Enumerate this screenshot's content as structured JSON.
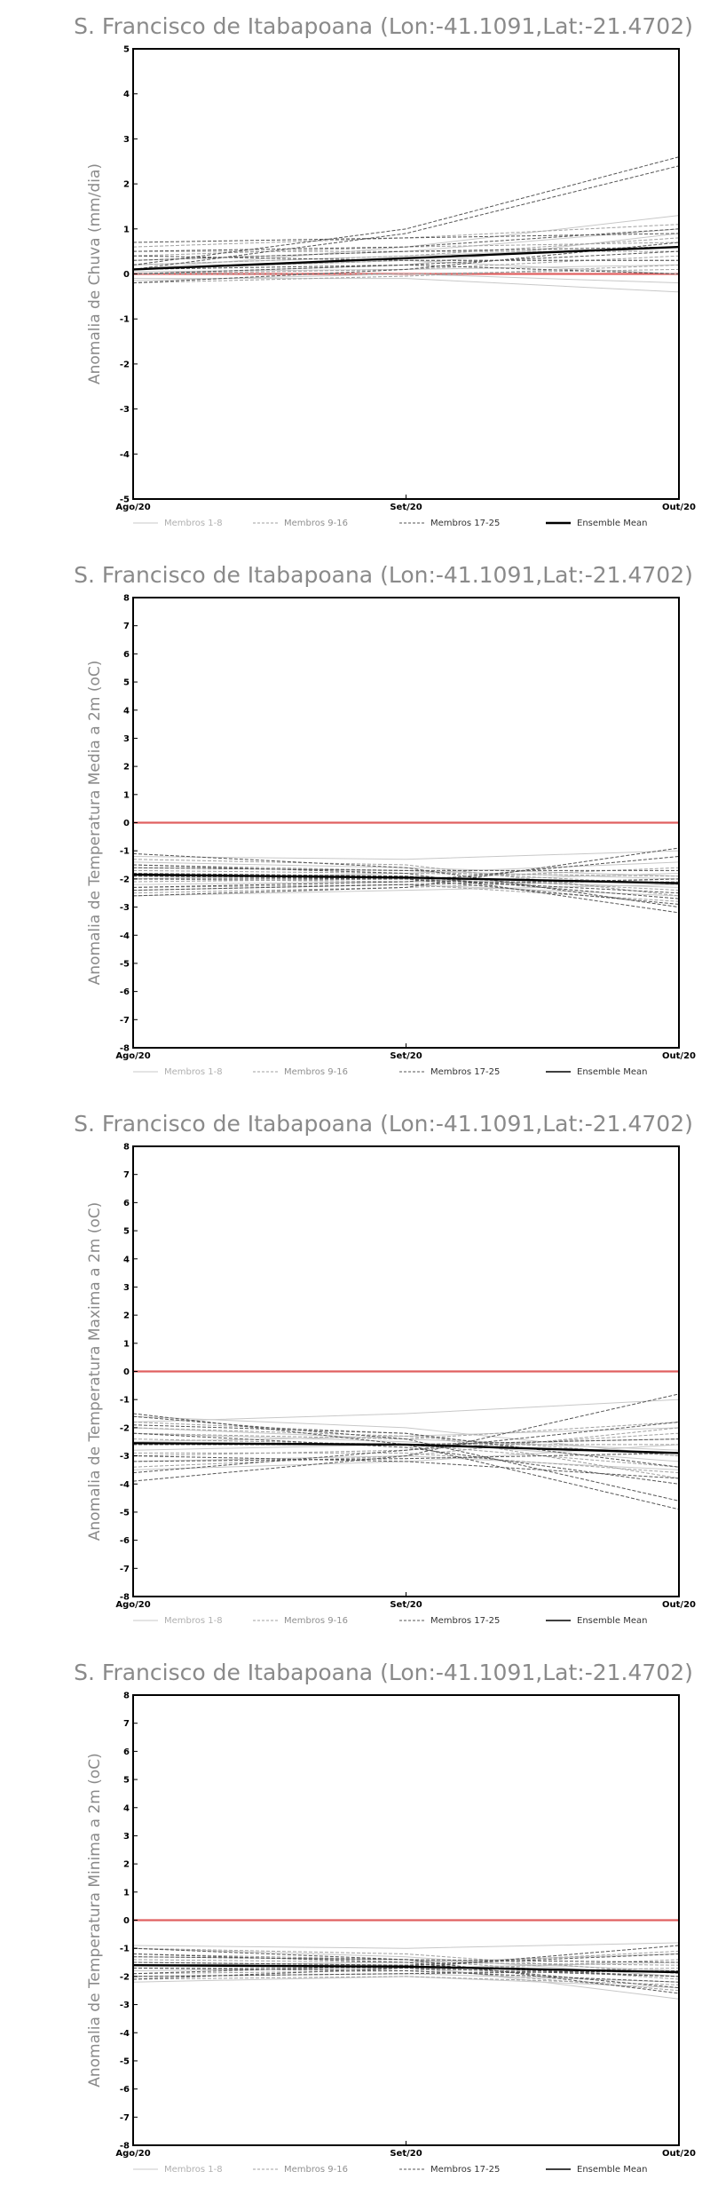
{
  "legend": [
    {
      "label": "Membros 1-8",
      "color": "#c8c8c8",
      "style": "solid"
    },
    {
      "label": "Membros 9-16",
      "color": "#a0a0a0",
      "style": "dashed"
    },
    {
      "label": "Membros 17-25",
      "color": "#555555",
      "style": "dashed"
    },
    {
      "label": "Ensemble Mean",
      "color": "#000000",
      "style": "solid"
    }
  ],
  "chart_data": [
    {
      "type": "line",
      "title": "S. Francisco de Itabapoana (Lon:-41.1091,Lat:-21.4702)",
      "ylabel": "Anomalia de Chuva (mm/dia)",
      "categories": [
        "Ago/20",
        "Set/20",
        "Out/20"
      ],
      "ylim": [
        -5,
        5
      ],
      "yticks": [
        -5,
        -4,
        -3,
        -2,
        -1,
        0,
        1,
        2,
        3,
        4,
        5
      ],
      "reference_line": {
        "value": 0,
        "color": "#e06060"
      },
      "series": [
        {
          "group": 1,
          "values": [
            0.1,
            0.6,
            1.3
          ]
        },
        {
          "group": 1,
          "values": [
            0.0,
            0.2,
            0.9
          ]
        },
        {
          "group": 1,
          "values": [
            -0.1,
            -0.1,
            -0.4
          ]
        },
        {
          "group": 1,
          "values": [
            0.2,
            0.4,
            0.6
          ]
        },
        {
          "group": 1,
          "values": [
            0.05,
            0.1,
            0.2
          ]
        },
        {
          "group": 1,
          "values": [
            0.3,
            0.5,
            1.0
          ]
        },
        {
          "group": 1,
          "values": [
            -0.15,
            0.0,
            -0.2
          ]
        },
        {
          "group": 1,
          "values": [
            0.1,
            0.3,
            0.0
          ]
        },
        {
          "group": 2,
          "values": [
            0.4,
            0.6,
            0.7
          ]
        },
        {
          "group": 2,
          "values": [
            0.6,
            0.8,
            1.1
          ]
        },
        {
          "group": 2,
          "values": [
            0.0,
            0.1,
            0.4
          ]
        },
        {
          "group": 2,
          "values": [
            -0.2,
            -0.05,
            0.2
          ]
        },
        {
          "group": 2,
          "values": [
            0.2,
            0.4,
            0.8
          ]
        },
        {
          "group": 2,
          "values": [
            0.1,
            0.3,
            0.3
          ]
        },
        {
          "group": 2,
          "values": [
            0.5,
            0.5,
            0.5
          ]
        },
        {
          "group": 2,
          "values": [
            0.0,
            0.0,
            0.1
          ]
        },
        {
          "group": 3,
          "values": [
            0.2,
            1.0,
            2.6
          ]
        },
        {
          "group": 3,
          "values": [
            0.1,
            0.9,
            2.4
          ]
        },
        {
          "group": 3,
          "values": [
            0.7,
            0.8,
            0.9
          ]
        },
        {
          "group": 3,
          "values": [
            -0.2,
            0.1,
            0.7
          ]
        },
        {
          "group": 3,
          "values": [
            0.3,
            0.5,
            0.6
          ]
        },
        {
          "group": 3,
          "values": [
            0.0,
            0.2,
            0.5
          ]
        },
        {
          "group": 3,
          "values": [
            0.5,
            0.6,
            1.0
          ]
        },
        {
          "group": 3,
          "values": [
            0.1,
            0.2,
            0.0
          ]
        },
        {
          "group": 3,
          "values": [
            0.4,
            0.3,
            0.3
          ]
        },
        {
          "group": 4,
          "values": [
            0.1,
            0.35,
            0.6
          ]
        }
      ]
    },
    {
      "type": "line",
      "title": "S. Francisco de Itabapoana (Lon:-41.1091,Lat:-21.4702)",
      "ylabel": "Anomalia de Temperatura Media a 2m (oC)",
      "categories": [
        "Ago/20",
        "Set/20",
        "Out/20"
      ],
      "ylim": [
        -8,
        8
      ],
      "yticks": [
        -8,
        -7,
        -6,
        -5,
        -4,
        -3,
        -2,
        -1,
        0,
        1,
        2,
        3,
        4,
        5,
        6,
        7,
        8
      ],
      "reference_line": {
        "value": 0,
        "color": "#e06060"
      },
      "series": [
        {
          "group": 1,
          "values": [
            -1.2,
            -1.3,
            -1.0
          ]
        },
        {
          "group": 1,
          "values": [
            -2.0,
            -1.8,
            -1.4
          ]
        },
        {
          "group": 1,
          "values": [
            -2.4,
            -2.2,
            -2.6
          ]
        },
        {
          "group": 1,
          "values": [
            -1.6,
            -1.7,
            -2.0
          ]
        },
        {
          "group": 1,
          "values": [
            -1.8,
            -2.0,
            -2.3
          ]
        },
        {
          "group": 1,
          "values": [
            -2.2,
            -2.1,
            -1.8
          ]
        },
        {
          "group": 1,
          "values": [
            -1.4,
            -1.6,
            -1.9
          ]
        },
        {
          "group": 1,
          "values": [
            -2.6,
            -2.4,
            -2.2
          ]
        },
        {
          "group": 2,
          "values": [
            -1.5,
            -1.7,
            -2.2
          ]
        },
        {
          "group": 2,
          "values": [
            -2.1,
            -2.0,
            -1.6
          ]
        },
        {
          "group": 2,
          "values": [
            -1.9,
            -1.9,
            -2.4
          ]
        },
        {
          "group": 2,
          "values": [
            -2.3,
            -2.2,
            -2.8
          ]
        },
        {
          "group": 2,
          "values": [
            -1.7,
            -1.8,
            -1.9
          ]
        },
        {
          "group": 2,
          "values": [
            -2.5,
            -2.3,
            -2.0
          ]
        },
        {
          "group": 2,
          "values": [
            -1.3,
            -1.5,
            -2.6
          ]
        },
        {
          "group": 2,
          "values": [
            -2.0,
            -2.1,
            -2.1
          ]
        },
        {
          "group": 3,
          "values": [
            -1.1,
            -1.6,
            -3.0
          ]
        },
        {
          "group": 3,
          "values": [
            -1.5,
            -1.8,
            -3.2
          ]
        },
        {
          "group": 3,
          "values": [
            -2.6,
            -2.3,
            -0.9
          ]
        },
        {
          "group": 3,
          "values": [
            -2.3,
            -2.1,
            -1.2
          ]
        },
        {
          "group": 3,
          "values": [
            -1.8,
            -1.9,
            -2.7
          ]
        },
        {
          "group": 3,
          "values": [
            -2.0,
            -2.0,
            -2.5
          ]
        },
        {
          "group": 3,
          "values": [
            -1.6,
            -1.7,
            -1.7
          ]
        },
        {
          "group": 3,
          "values": [
            -2.4,
            -2.2,
            -2.0
          ]
        },
        {
          "group": 3,
          "values": [
            -1.9,
            -2.0,
            -2.9
          ]
        },
        {
          "group": 4,
          "values": [
            -1.85,
            -1.95,
            -2.15
          ]
        }
      ]
    },
    {
      "type": "line",
      "title": "S. Francisco de Itabapoana (Lon:-41.1091,Lat:-21.4702)",
      "ylabel": "Anomalia de Temperatura Maxima a 2m (oC)",
      "categories": [
        "Ago/20",
        "Set/20",
        "Out/20"
      ],
      "ylim": [
        -8,
        8
      ],
      "yticks": [
        -8,
        -7,
        -6,
        -5,
        -4,
        -3,
        -2,
        -1,
        0,
        1,
        2,
        3,
        4,
        5,
        6,
        7,
        8
      ],
      "reference_line": {
        "value": 0,
        "color": "#e06060"
      },
      "series": [
        {
          "group": 1,
          "values": [
            -1.8,
            -1.5,
            -1.0
          ]
        },
        {
          "group": 1,
          "values": [
            -2.5,
            -2.3,
            -2.0
          ]
        },
        {
          "group": 1,
          "values": [
            -3.2,
            -3.0,
            -3.5
          ]
        },
        {
          "group": 1,
          "values": [
            -2.0,
            -2.4,
            -2.8
          ]
        },
        {
          "group": 1,
          "values": [
            -2.8,
            -2.6,
            -2.4
          ]
        },
        {
          "group": 1,
          "values": [
            -1.6,
            -2.0,
            -3.0
          ]
        },
        {
          "group": 1,
          "values": [
            -3.5,
            -3.2,
            -2.6
          ]
        },
        {
          "group": 1,
          "values": [
            -2.2,
            -2.5,
            -3.2
          ]
        },
        {
          "group": 2,
          "values": [
            -2.4,
            -2.6,
            -3.4
          ]
        },
        {
          "group": 2,
          "values": [
            -3.0,
            -2.8,
            -2.2
          ]
        },
        {
          "group": 2,
          "values": [
            -1.8,
            -2.2,
            -3.8
          ]
        },
        {
          "group": 2,
          "values": [
            -2.6,
            -2.6,
            -2.6
          ]
        },
        {
          "group": 2,
          "values": [
            -3.4,
            -3.0,
            -2.0
          ]
        },
        {
          "group": 2,
          "values": [
            -2.0,
            -2.3,
            -3.0
          ]
        },
        {
          "group": 2,
          "values": [
            -2.9,
            -2.9,
            -3.6
          ]
        },
        {
          "group": 2,
          "values": [
            -2.2,
            -2.4,
            -1.8
          ]
        },
        {
          "group": 3,
          "values": [
            -1.6,
            -2.4,
            -4.6
          ]
        },
        {
          "group": 3,
          "values": [
            -1.5,
            -2.6,
            -4.9
          ]
        },
        {
          "group": 3,
          "values": [
            -3.9,
            -3.0,
            -0.8
          ]
        },
        {
          "group": 3,
          "values": [
            -3.6,
            -2.8,
            -1.8
          ]
        },
        {
          "group": 3,
          "values": [
            -2.2,
            -2.7,
            -4.0
          ]
        },
        {
          "group": 3,
          "values": [
            -3.0,
            -3.2,
            -3.8
          ]
        },
        {
          "group": 3,
          "values": [
            -2.6,
            -2.6,
            -2.4
          ]
        },
        {
          "group": 3,
          "values": [
            -1.9,
            -2.2,
            -3.4
          ]
        },
        {
          "group": 3,
          "values": [
            -3.2,
            -3.1,
            -2.9
          ]
        },
        {
          "group": 4,
          "values": [
            -2.55,
            -2.6,
            -2.9
          ]
        }
      ]
    },
    {
      "type": "line",
      "title": "S. Francisco de Itabapoana (Lon:-41.1091,Lat:-21.4702)",
      "ylabel": "Anomalia de Temperatura Minima a 2m (oC)",
      "categories": [
        "Ago/20",
        "Set/20",
        "Out/20"
      ],
      "ylim": [
        -8,
        8
      ],
      "yticks": [
        -8,
        -7,
        -6,
        -5,
        -4,
        -3,
        -2,
        -1,
        0,
        1,
        2,
        3,
        4,
        5,
        6,
        7,
        8
      ],
      "reference_line": {
        "value": 0,
        "color": "#e06060"
      },
      "series": [
        {
          "group": 1,
          "values": [
            -0.9,
            -1.0,
            -0.8
          ]
        },
        {
          "group": 1,
          "values": [
            -1.6,
            -1.5,
            -1.2
          ]
        },
        {
          "group": 1,
          "values": [
            -2.2,
            -2.0,
            -2.4
          ]
        },
        {
          "group": 1,
          "values": [
            -1.3,
            -1.4,
            -1.8
          ]
        },
        {
          "group": 1,
          "values": [
            -1.8,
            -1.7,
            -1.5
          ]
        },
        {
          "group": 1,
          "values": [
            -1.0,
            -1.3,
            -2.0
          ]
        },
        {
          "group": 1,
          "values": [
            -2.0,
            -1.9,
            -2.2
          ]
        },
        {
          "group": 1,
          "values": [
            -1.5,
            -1.6,
            -2.8
          ]
        },
        {
          "group": 2,
          "values": [
            -1.2,
            -1.4,
            -2.1
          ]
        },
        {
          "group": 2,
          "values": [
            -1.9,
            -1.8,
            -1.4
          ]
        },
        {
          "group": 2,
          "values": [
            -1.4,
            -1.5,
            -1.6
          ]
        },
        {
          "group": 2,
          "values": [
            -2.1,
            -2.0,
            -2.3
          ]
        },
        {
          "group": 2,
          "values": [
            -1.6,
            -1.6,
            -1.1
          ]
        },
        {
          "group": 2,
          "values": [
            -1.0,
            -1.2,
            -1.9
          ]
        },
        {
          "group": 2,
          "values": [
            -1.7,
            -1.7,
            -2.5
          ]
        },
        {
          "group": 2,
          "values": [
            -2.0,
            -1.9,
            -1.7
          ]
        },
        {
          "group": 3,
          "values": [
            -1.0,
            -1.4,
            -2.6
          ]
        },
        {
          "group": 3,
          "values": [
            -1.2,
            -1.5,
            -2.4
          ]
        },
        {
          "group": 3,
          "values": [
            -2.1,
            -1.7,
            -0.9
          ]
        },
        {
          "group": 3,
          "values": [
            -1.9,
            -1.6,
            -1.2
          ]
        },
        {
          "group": 3,
          "values": [
            -1.5,
            -1.6,
            -2.0
          ]
        },
        {
          "group": 3,
          "values": [
            -1.7,
            -1.8,
            -2.2
          ]
        },
        {
          "group": 3,
          "values": [
            -1.3,
            -1.4,
            -1.5
          ]
        },
        {
          "group": 3,
          "values": [
            -2.0,
            -1.9,
            -1.8
          ]
        },
        {
          "group": 3,
          "values": [
            -1.6,
            -1.7,
            -2.0
          ]
        },
        {
          "group": 4,
          "values": [
            -1.6,
            -1.65,
            -1.85
          ]
        }
      ]
    }
  ]
}
